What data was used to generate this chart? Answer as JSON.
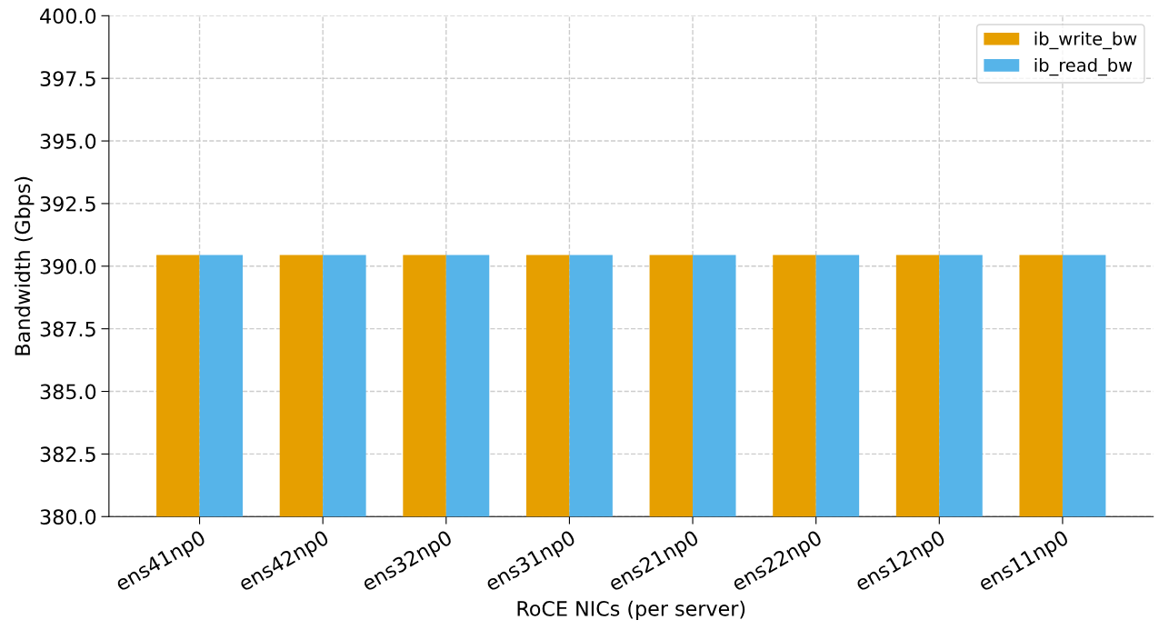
{
  "chart_data": {
    "type": "bar",
    "xlabel": "RoCE NICs (per server)",
    "ylabel": "Bandwidth (Gbps)",
    "categories": [
      "ens41np0",
      "ens42np0",
      "ens32np0",
      "ens31np0",
      "ens21np0",
      "ens22np0",
      "ens12np0",
      "ens11np0"
    ],
    "series": [
      {
        "name": "ib_write_bw",
        "color": "#e69f00",
        "values": [
          390.45,
          390.45,
          390.45,
          390.45,
          390.45,
          390.45,
          390.45,
          390.45
        ]
      },
      {
        "name": "ib_read_bw",
        "color": "#56b4e9",
        "values": [
          390.45,
          390.45,
          390.45,
          390.45,
          390.45,
          390.45,
          390.45,
          390.45
        ]
      }
    ],
    "ylim": [
      380,
      400
    ],
    "yticks": [
      {
        "value": 380,
        "label": "380.0"
      },
      {
        "value": 382.5,
        "label": "382.5"
      },
      {
        "value": 385,
        "label": "385.0"
      },
      {
        "value": 387.5,
        "label": "387.5"
      },
      {
        "value": 390,
        "label": "390.0"
      },
      {
        "value": 392.5,
        "label": "392.5"
      },
      {
        "value": 395,
        "label": "395.0"
      },
      {
        "value": 397.5,
        "label": "397.5"
      },
      {
        "value": 400,
        "label": "400.0"
      }
    ],
    "grid": true,
    "legend": "top right"
  }
}
